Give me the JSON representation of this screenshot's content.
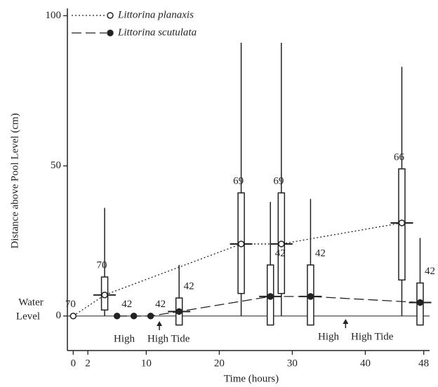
{
  "chart_data": {
    "type": "range",
    "y_axis_label": "Distance above Pool Level (cm)",
    "x_axis_label": "Time (hours)",
    "water_level_label": [
      "Water",
      "Level"
    ],
    "xlim": [
      -0.8,
      48.8
    ],
    "xticks": [
      0,
      2,
      10,
      20,
      30,
      40,
      48
    ],
    "ylim": [
      -11.5,
      101.5
    ],
    "yticks": [
      0,
      50,
      100
    ],
    "series": [
      {
        "name": "Littorina planaxis",
        "color": "#222222",
        "line": "dotted",
        "marker": "open",
        "x": [
          0,
          4.3,
          23,
          28.5,
          45
        ],
        "values": [
          0,
          7,
          24,
          24,
          31
        ],
        "low": [
          null,
          0,
          0,
          0,
          0
        ],
        "high": [
          null,
          36,
          91,
          91,
          83
        ],
        "box_low": [
          null,
          2,
          7.5,
          7.5,
          12
        ],
        "box_high": [
          null,
          13,
          41,
          41,
          49
        ],
        "n": [
          70,
          70,
          69,
          69,
          66
        ]
      },
      {
        "name": "Littorina scutulata",
        "color": "#222222",
        "line": "dashed",
        "marker": "filled",
        "x": [
          6,
          8.3,
          10.6,
          14.5,
          27,
          32.5,
          47.5
        ],
        "values": [
          0,
          0,
          0,
          1.5,
          6.5,
          6.5,
          4.5
        ],
        "low": [
          null,
          null,
          null,
          -3,
          -3,
          -3,
          -3
        ],
        "high": [
          null,
          null,
          null,
          17,
          38,
          39,
          26
        ],
        "box_low": [
          null,
          null,
          null,
          -3,
          -3,
          -3,
          -3
        ],
        "box_high": [
          null,
          null,
          null,
          6,
          17,
          17,
          11
        ],
        "n": [
          42,
          null,
          42,
          42,
          42,
          42,
          42
        ]
      }
    ],
    "tide_times": [
      11.8,
      37.3
    ],
    "annotations": [
      "High",
      "High Tide",
      "High",
      "High Tide"
    ]
  }
}
